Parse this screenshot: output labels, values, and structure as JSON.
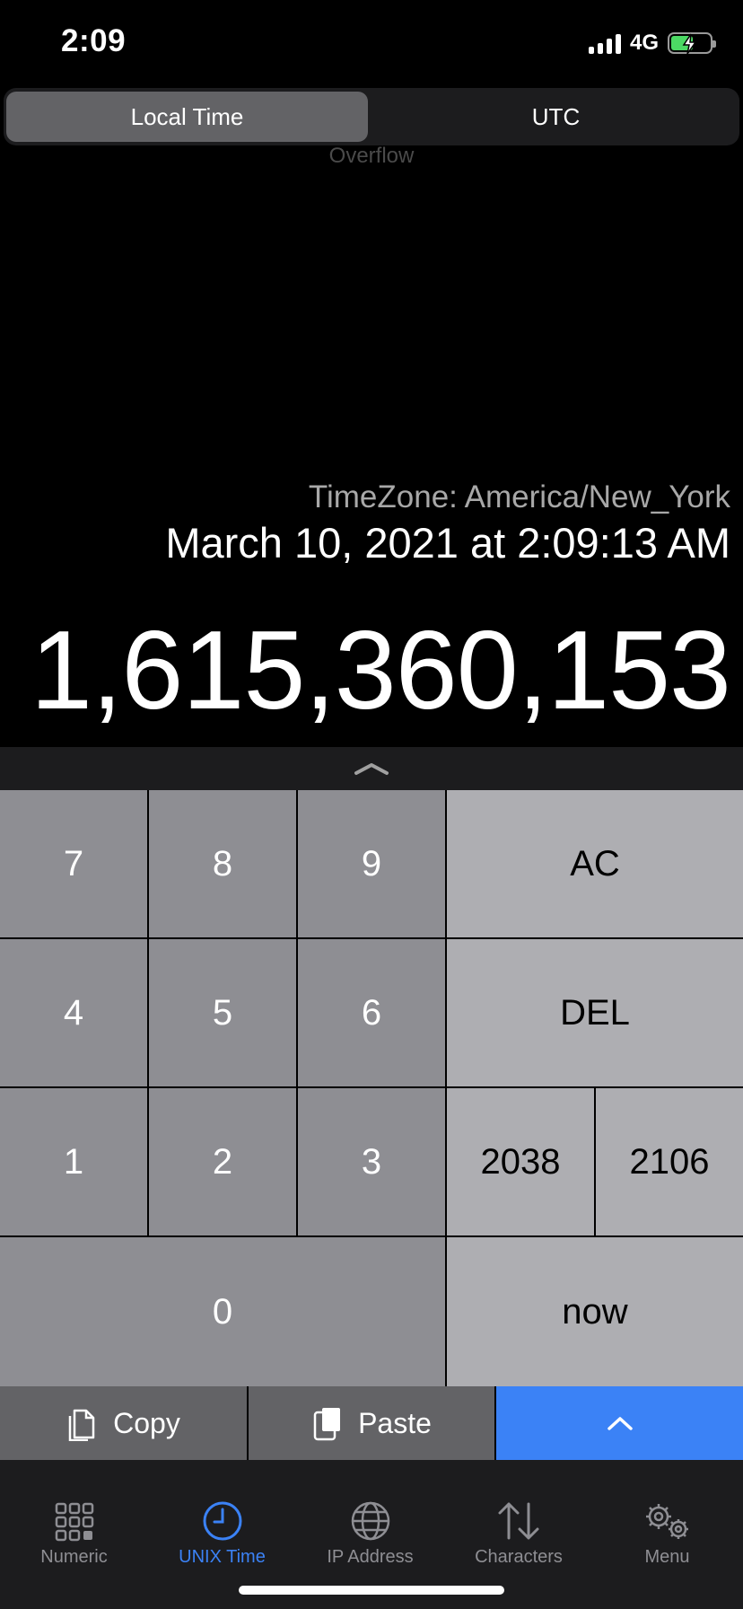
{
  "status_bar": {
    "time": "2:09",
    "network": "4G",
    "battery_color": "#4cd964"
  },
  "segmented": {
    "options": [
      "Local Time",
      "UTC"
    ],
    "selected": "Local Time"
  },
  "overflow_label": "Overflow",
  "timezone_label": "TimeZone: America/New_York",
  "date_text": "March 10, 2021 at 2:09:13 AM",
  "unix_value": "1,615,360,153",
  "keypad": {
    "k7": "7",
    "k8": "8",
    "k9": "9",
    "ac": "AC",
    "k4": "4",
    "k5": "5",
    "k6": "6",
    "del": "DEL",
    "k1": "1",
    "k2": "2",
    "k3": "3",
    "y2038": "2038",
    "y2106": "2106",
    "k0": "0",
    "now": "now"
  },
  "actions": {
    "copy": "Copy",
    "paste": "Paste",
    "expand_icon": "chevron-up-icon"
  },
  "tabs": [
    {
      "label": "Numeric",
      "icon": "grid-icon"
    },
    {
      "label": "UNIX Time",
      "icon": "clock-icon"
    },
    {
      "label": "IP Address",
      "icon": "globe-icon"
    },
    {
      "label": "Characters",
      "icon": "arrows-up-down-icon"
    },
    {
      "label": "Menu",
      "icon": "gears-icon"
    }
  ],
  "active_tab": "UNIX Time",
  "colors": {
    "accent": "#3b82f6",
    "key_dark": "#8e8e93",
    "key_light": "#aeaeb2"
  }
}
